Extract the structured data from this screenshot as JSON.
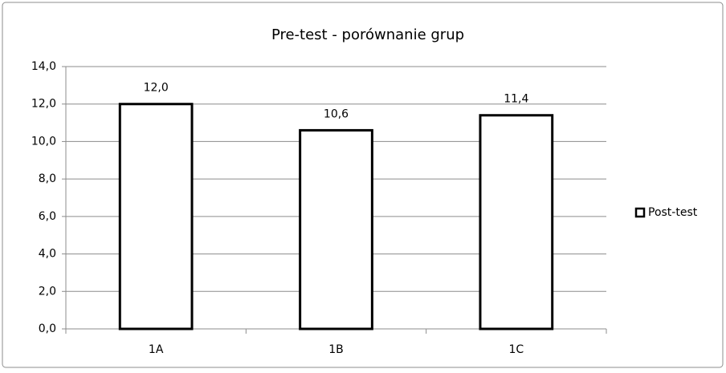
{
  "chart_data": {
    "type": "bar",
    "title": "Pre-test - porównanie grup",
    "categories": [
      "1A",
      "1B",
      "1C"
    ],
    "series": [
      {
        "name": "Post-test",
        "color": "#ffffff",
        "edgecolor": "#000000",
        "values": [
          12.0,
          10.6,
          11.4
        ],
        "value_labels": [
          "12,0",
          "10,6",
          "11,4"
        ]
      }
    ],
    "ylim": [
      0,
      14
    ],
    "yticks": [
      {
        "value": 0,
        "label": "0,0"
      },
      {
        "value": 2,
        "label": "2,0"
      },
      {
        "value": 4,
        "label": "4,0"
      },
      {
        "value": 6,
        "label": "6,0"
      },
      {
        "value": 8,
        "label": "8,0"
      },
      {
        "value": 10,
        "label": "10,0"
      },
      {
        "value": 12,
        "label": "12,0"
      },
      {
        "value": 14,
        "label": "14,0"
      }
    ],
    "grid": true,
    "legend": "right"
  }
}
